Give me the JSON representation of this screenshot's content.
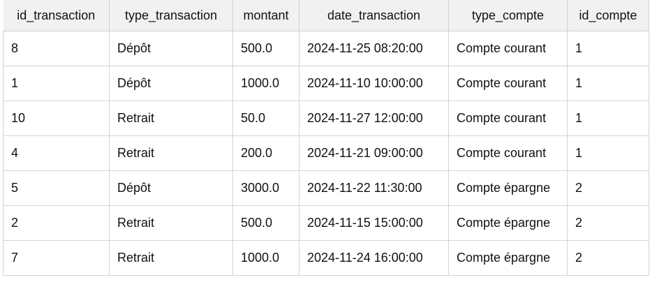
{
  "grid": {
    "columns": [
      "id_transaction",
      "type_transaction",
      "montant",
      "date_transaction",
      "type_compte",
      "id_compte"
    ],
    "rows": [
      [
        "8",
        "Dépôt",
        "500.0",
        "2024-11-25 08:20:00",
        "Compte courant",
        "1"
      ],
      [
        "1",
        "Dépôt",
        "1000.0",
        "2024-11-10 10:00:00",
        "Compte courant",
        "1"
      ],
      [
        "10",
        "Retrait",
        "50.0",
        "2024-11-27 12:00:00",
        "Compte courant",
        "1"
      ],
      [
        "4",
        "Retrait",
        "200.0",
        "2024-11-21 09:00:00",
        "Compte courant",
        "1"
      ],
      [
        "5",
        "Dépôt",
        "3000.0",
        "2024-11-22 11:30:00",
        "Compte épargne",
        "2"
      ],
      [
        "2",
        "Retrait",
        "500.0",
        "2024-11-15 15:00:00",
        "Compte épargne",
        "2"
      ],
      [
        "7",
        "Retrait",
        "1000.0",
        "2024-11-24 16:00:00",
        "Compte épargne",
        "2"
      ]
    ]
  },
  "colors": {
    "header_bg": "#f1f1f1",
    "grid_line": "#d4d4d4",
    "text": "#111111"
  }
}
